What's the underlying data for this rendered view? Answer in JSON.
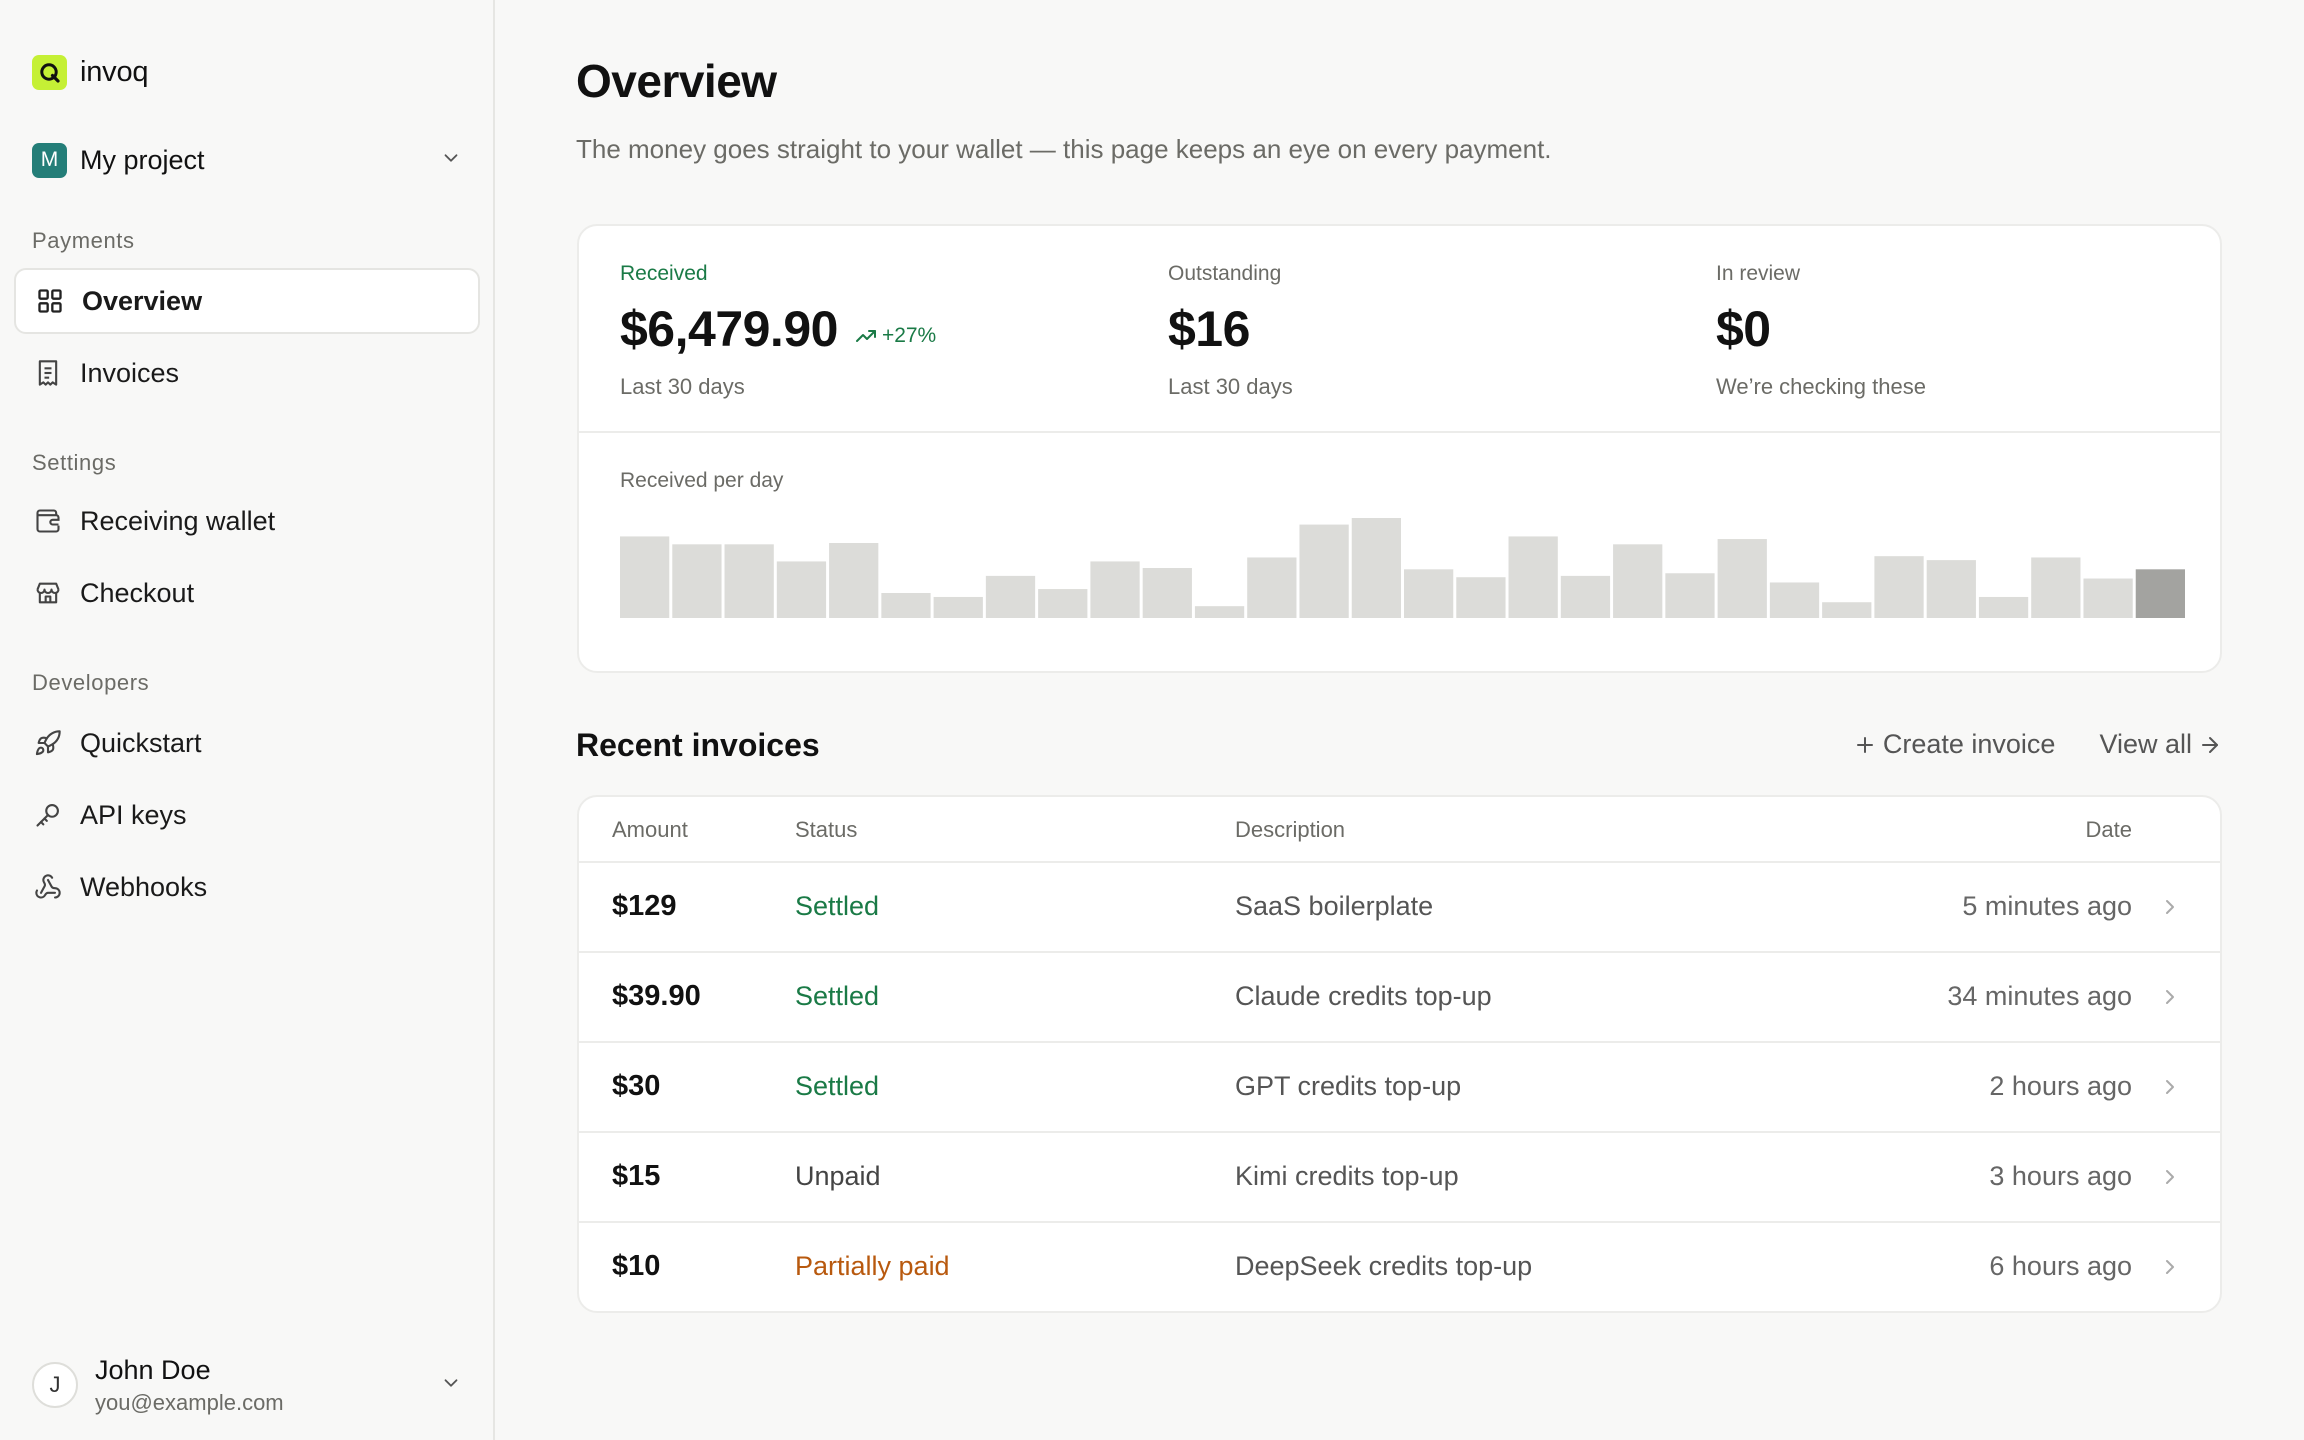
{
  "app": {
    "name": "invoq"
  },
  "project": {
    "initial": "M",
    "name": "My project"
  },
  "sidebar": {
    "sections": [
      {
        "label": "Payments",
        "items": [
          {
            "label": "Overview",
            "icon": "grid-icon",
            "active": true
          },
          {
            "label": "Invoices",
            "icon": "receipt-icon"
          }
        ]
      },
      {
        "label": "Settings",
        "items": [
          {
            "label": "Receiving wallet",
            "icon": "wallet-icon"
          },
          {
            "label": "Checkout",
            "icon": "store-icon"
          }
        ]
      },
      {
        "label": "Developers",
        "items": [
          {
            "label": "Quickstart",
            "icon": "rocket-icon"
          },
          {
            "label": "API keys",
            "icon": "key-icon"
          },
          {
            "label": "Webhooks",
            "icon": "webhook-icon"
          }
        ]
      }
    ]
  },
  "user": {
    "initial": "J",
    "name": "John Doe",
    "email": "you@example.com"
  },
  "page": {
    "title": "Overview",
    "subtitle": "The money goes straight to your wallet — this page keeps an eye on every payment."
  },
  "stats": [
    {
      "label": "Received",
      "value": "$6,479.90",
      "trend": "+27%",
      "sub": "Last 30 days"
    },
    {
      "label": "Outstanding",
      "value": "$16",
      "sub": "Last 30 days"
    },
    {
      "label": "In review",
      "value": "$0",
      "sub": "We’re checking these"
    }
  ],
  "chart_data": {
    "type": "bar",
    "title": "Received per day",
    "values": [
      62,
      56,
      56,
      43,
      57,
      19,
      16,
      32,
      22,
      43,
      38,
      9,
      46,
      71,
      76,
      37,
      31,
      62,
      32,
      56,
      34,
      60,
      27,
      12,
      47,
      44,
      16,
      46,
      30,
      37
    ],
    "highlight_last": true,
    "colors": {
      "bar": "#dcdcd9",
      "highlight": "#a3a3a0"
    }
  },
  "recent": {
    "title": "Recent invoices",
    "create_label": "Create invoice",
    "view_all_label": "View all",
    "columns": {
      "amount": "Amount",
      "status": "Status",
      "description": "Description",
      "date": "Date"
    },
    "rows": [
      {
        "amount": "$129",
        "status": "Settled",
        "status_color": "#1a7a46",
        "description": "SaaS boilerplate",
        "date": "5 minutes ago"
      },
      {
        "amount": "$39.90",
        "status": "Settled",
        "status_color": "#1a7a46",
        "description": "Claude credits top-up",
        "date": "34 minutes ago"
      },
      {
        "amount": "$30",
        "status": "Settled",
        "status_color": "#1a7a46",
        "description": "GPT credits top-up",
        "date": "2 hours ago"
      },
      {
        "amount": "$15",
        "status": "Unpaid",
        "status_color": "#444444",
        "description": "Kimi credits top-up",
        "date": "3 hours ago"
      },
      {
        "amount": "$10",
        "status": "Partially paid",
        "status_color": "#b8590e",
        "description": "DeepSeek credits top-up",
        "date": "6 hours ago"
      }
    ]
  }
}
